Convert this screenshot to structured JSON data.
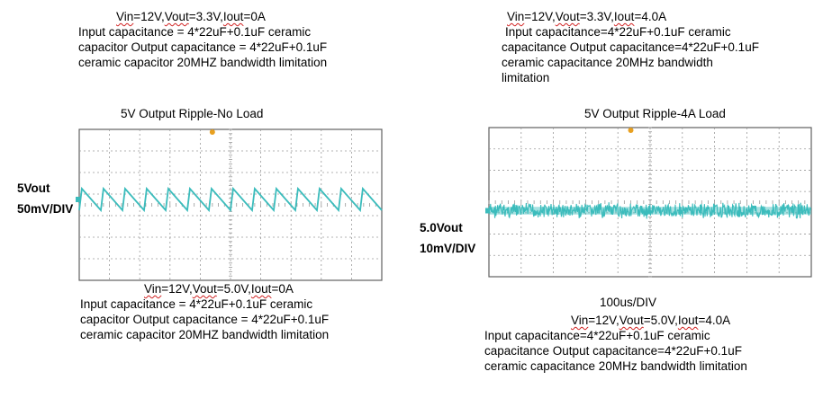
{
  "top_left": {
    "cond": [
      "Vin",
      "=12V,",
      "Vout",
      "=3.3V,",
      "Iout",
      "=0A"
    ],
    "lines": [
      "Input capacitance = 4*22uF+0.1uF ceramic",
      "capacitor Output capacitance = 4*22uF+0.1uF",
      "ceramic capacitor 20MHZ bandwidth limitation"
    ]
  },
  "top_right": {
    "cond": [
      "Vin",
      "=12V,",
      "Vout",
      "=3.3V,",
      "Iout",
      "=4.0A"
    ],
    "lines": [
      "Input capacitance=4*22uF+0.1uF ceramic",
      "capacitance Output capacitance=4*22uF+0.1uF",
      "ceramic capacitance 20MHz bandwidth",
      "limitation"
    ]
  },
  "bottom_left": {
    "cond": [
      "Vin",
      "=12V,",
      "Vout",
      "=5.0V,",
      "Iout",
      "=0A"
    ],
    "lines": [
      "Input capacitance = 4*22uF+0.1uF ceramic",
      "capacitor Output capacitance = 4*22uF+0.1uF",
      "ceramic capacitor 20MHZ bandwidth limitation"
    ]
  },
  "bottom_right": {
    "cond": [
      "Vin",
      "=12V,",
      "Vout",
      "=5.0V,",
      "Iout",
      "=4.0A"
    ],
    "lines": [
      "Input capacitance=4*22uF+0.1uF ceramic",
      "capacitance Output capacitance=4*22uF+0.1uF",
      "ceramic capacitance 20MHz bandwidth limitation"
    ]
  },
  "colors": {
    "trace": "#3bbcbc",
    "grid": "#9a9a9a",
    "frame": "#606060",
    "marker": "#e8a020"
  },
  "chart_data": [
    {
      "type": "line",
      "title": "5V Output Ripple-No Load",
      "ylabel_lines": [
        "5Vout",
        "50mV/DIV"
      ],
      "grid": true,
      "divisions": {
        "x": 10,
        "y": 7
      },
      "ylim_div": [
        -3.5,
        3.5
      ],
      "series": [
        {
          "shape": "sawtooth",
          "cycles": 14,
          "amplitude_div": 1.0,
          "offset_div": 0.25
        }
      ]
    },
    {
      "type": "line",
      "title": "5V Output Ripple-4A Load",
      "ylabel_lines": [
        "5.0Vout",
        "10mV/DIV"
      ],
      "xlabel": "100us/DIV",
      "grid": true,
      "divisions": {
        "x": 10,
        "y": 7
      },
      "ylim_div": [
        -3.5,
        3.5
      ],
      "series": [
        {
          "shape": "noise",
          "amplitude_div": 0.8,
          "offset_div": -0.4
        }
      ]
    }
  ]
}
